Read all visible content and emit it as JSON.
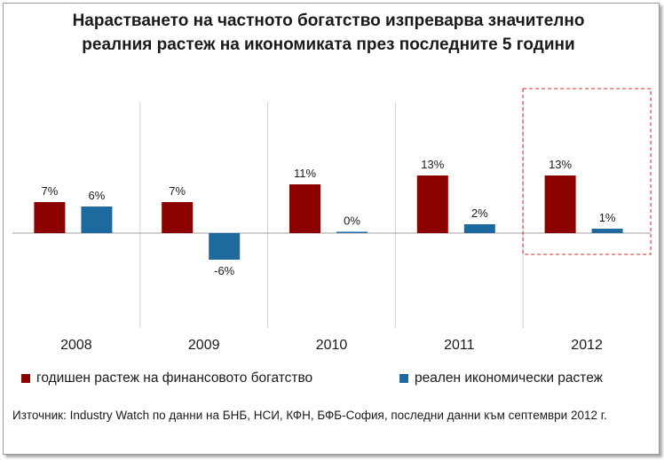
{
  "title": "Нарастването на частното богатство изпреварва значително реалния растеж на икономиката през последните 5 години",
  "source": "Източник: Industry Watch по данни на БНБ, НСИ, КФН, БФБ-София, последни данни към септември 2012 г.",
  "colors": {
    "series_1": "#8b0000",
    "series_2": "#1e6a9e",
    "highlight_box": "#e05050",
    "separators": "#d0d0d0",
    "zero_line": "#a0a0a0"
  },
  "chart_data": {
    "type": "bar",
    "categories": [
      "2008",
      "2009",
      "2010",
      "2011",
      "2012"
    ],
    "series": [
      {
        "name": "годишен растеж на финансовото богатство",
        "values": [
          7,
          7,
          11,
          13,
          13
        ],
        "labels": [
          "7%",
          "7%",
          "11%",
          "13%",
          "13%"
        ]
      },
      {
        "name": "реален икономически растеж",
        "values": [
          6,
          -6,
          0.3,
          2,
          1
        ],
        "labels": [
          "6%",
          "-6%",
          "0%",
          "2%",
          "1%"
        ]
      }
    ],
    "highlighted_category": "2012",
    "ylim": [
      -8,
      15
    ],
    "grid": false,
    "legend_position": "bottom"
  }
}
